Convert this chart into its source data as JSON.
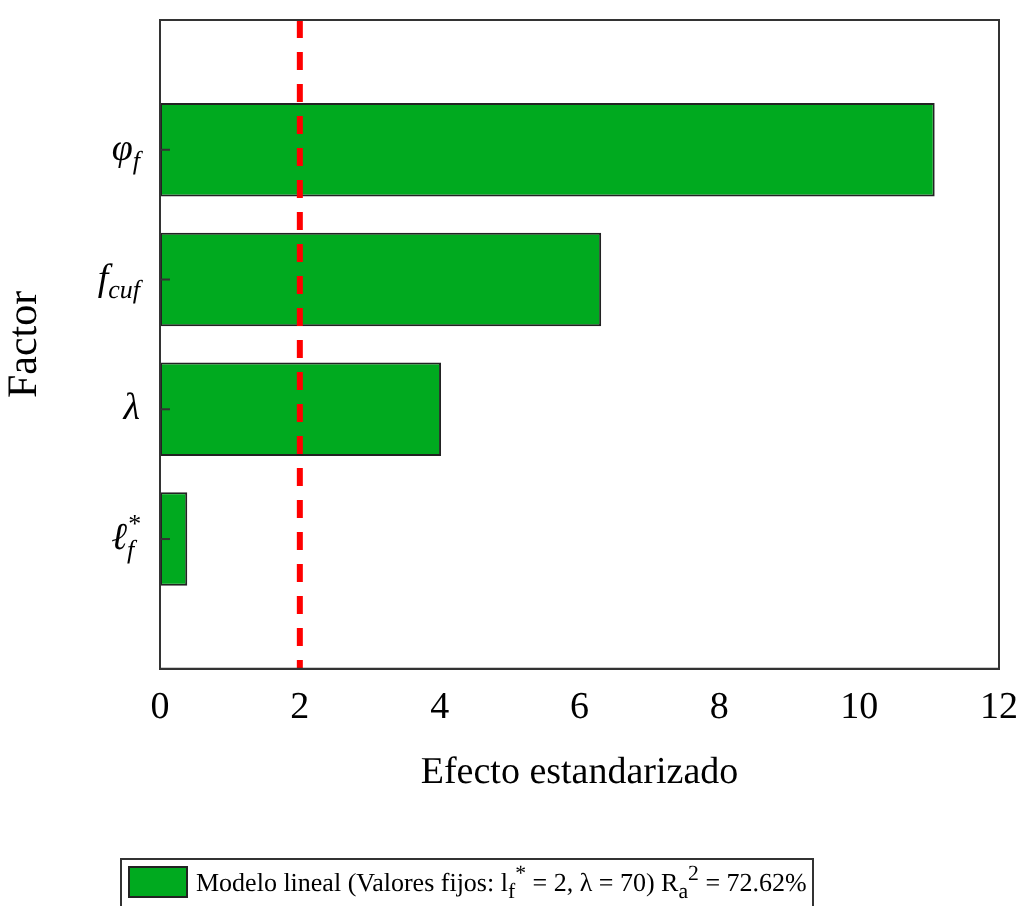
{
  "chart_data": {
    "type": "bar",
    "orientation": "horizontal",
    "categories": [
      "φ$_{f}$",
      "f$_{cuf}$",
      "λ",
      "ℓ$_{f}$$^{*}$"
    ],
    "series": [
      {
        "name": "Modelo lineal (Valores fijos: l$_{f}$$^{*}$ = 2, λ = 70) R$_{a}$$^{2}$ = 72.62%",
        "color": "#00aa1f",
        "values": [
          11.08,
          6.31,
          4.02,
          0.39
        ]
      }
    ],
    "xlabel": "Efecto estandarizado",
    "ylabel": "Factor",
    "xlim": [
      0,
      12
    ],
    "xticks": [
      0,
      2,
      4,
      6,
      8,
      10,
      12
    ],
    "ref_lines": [
      {
        "axis": "x",
        "value": 2,
        "color": "#ff0000",
        "line_style": "dashed"
      }
    ],
    "legend": "bottom",
    "grid": false
  }
}
